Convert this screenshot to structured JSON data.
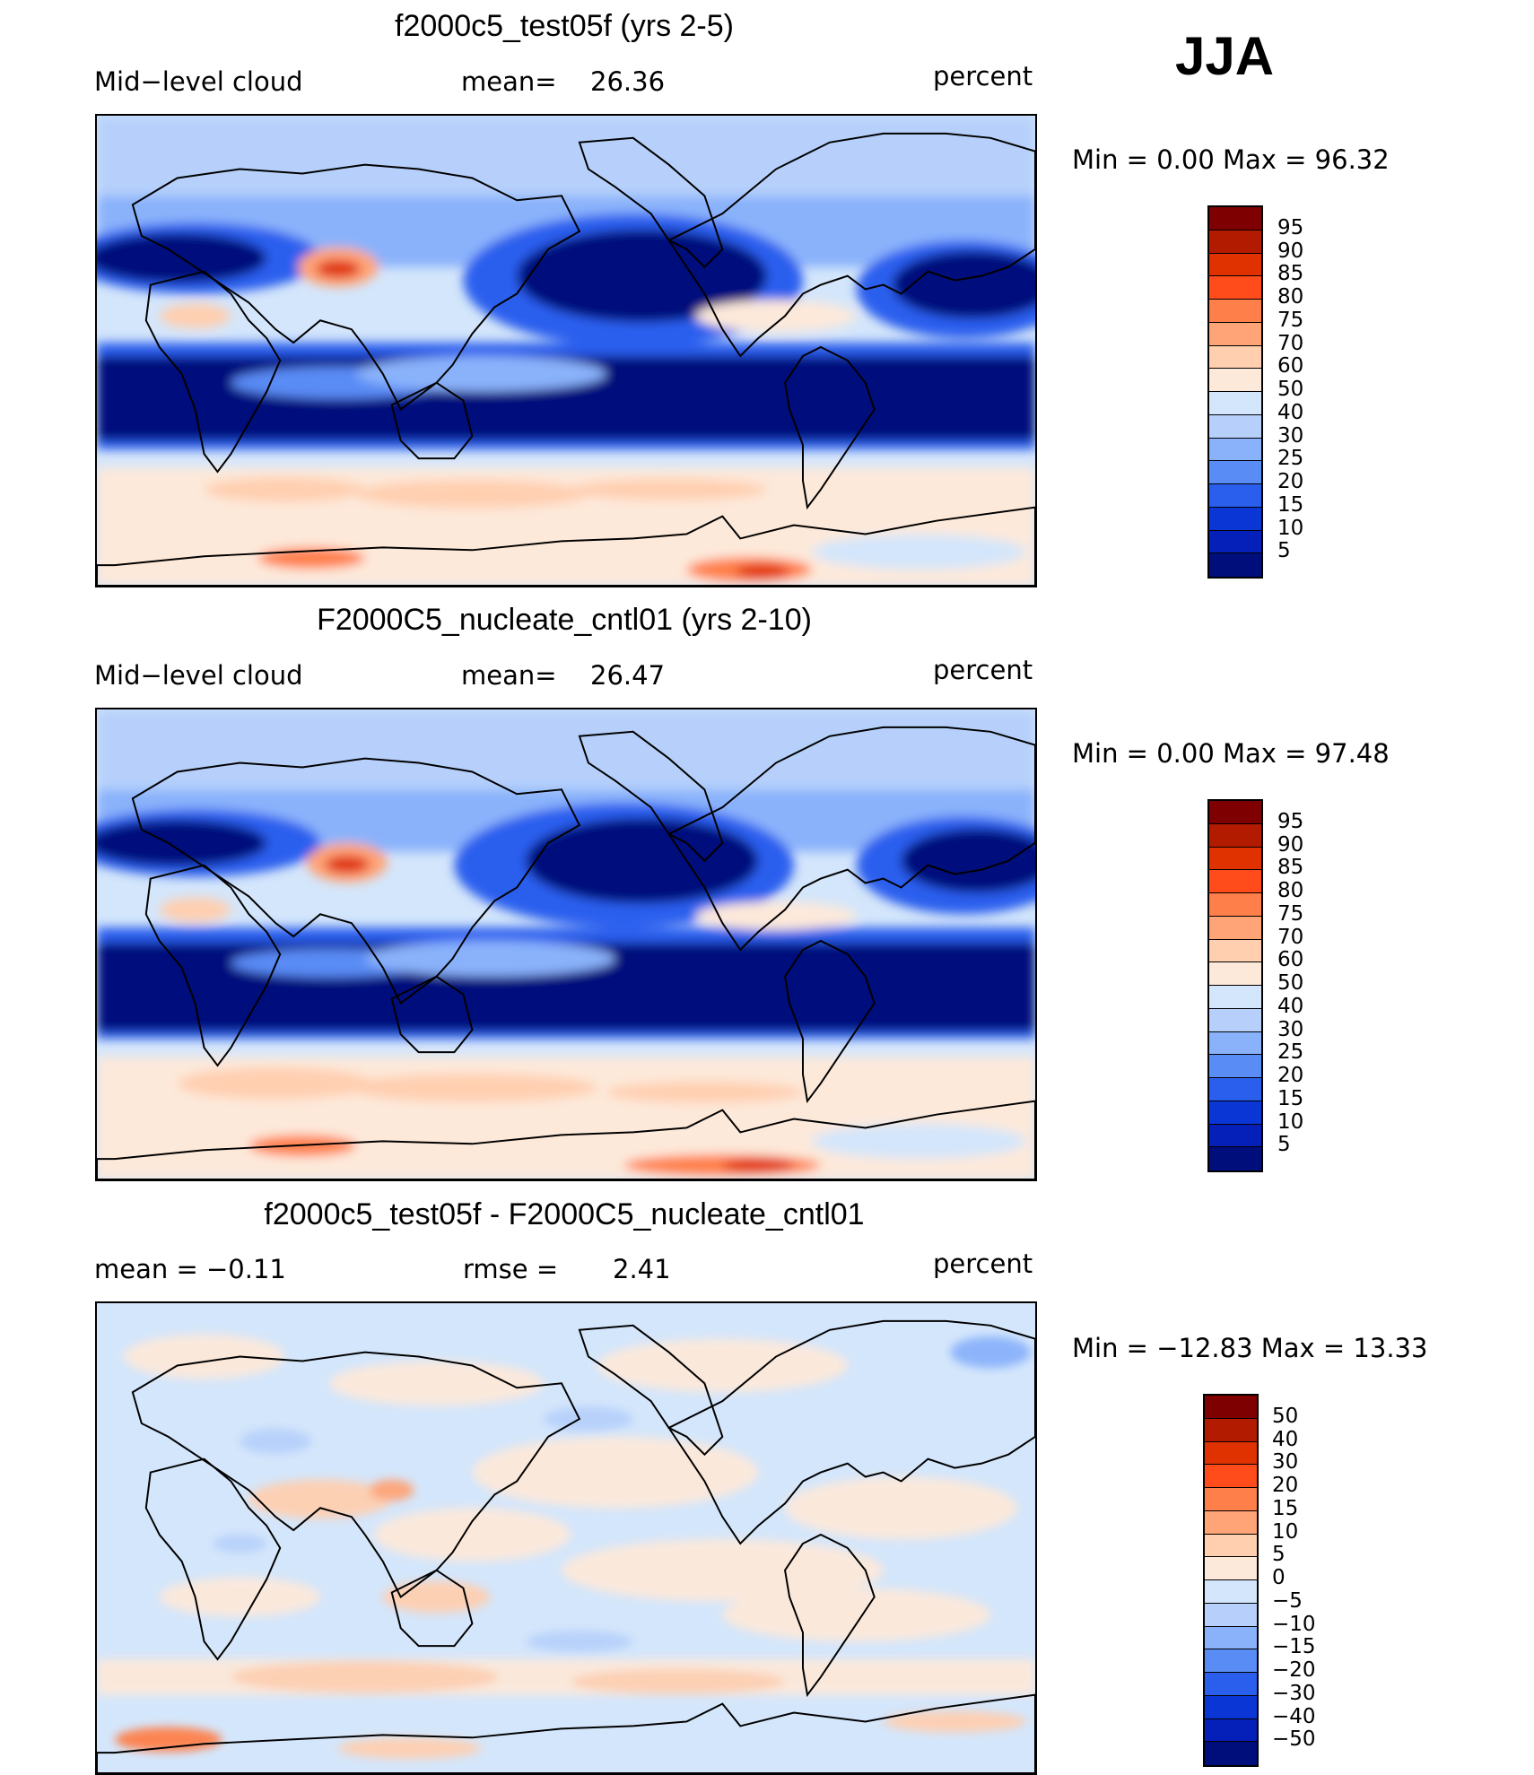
{
  "season": "JJA",
  "panels": [
    {
      "title": "f2000c5_test05f (yrs 2-5)",
      "left_label": "Mid−level cloud",
      "center_label": "mean=",
      "center_value": "26.36",
      "units": "percent",
      "minmax": "Min  =    0.00  Max  =   96.32",
      "colorbar": {
        "labels": [
          "95",
          "90",
          "85",
          "80",
          "75",
          "70",
          "60",
          "50",
          "40",
          "30",
          "25",
          "20",
          "15",
          "10",
          "5"
        ],
        "colors": [
          "#7f0000",
          "#b31b00",
          "#e03200",
          "#ff4c1a",
          "#ff7f4a",
          "#ffa477",
          "#ffcfb0",
          "#fde9da",
          "#d4e6fb",
          "#b6d0fb",
          "#8ab2fb",
          "#5a8cf6",
          "#2a5fee",
          "#0b36d6",
          "#0520b8",
          "#000e7c"
        ]
      }
    },
    {
      "title": "F2000C5_nucleate_cntl01 (yrs 2-10)",
      "left_label": "Mid−level cloud",
      "center_label": "mean=",
      "center_value": "26.47",
      "units": "percent",
      "minmax": "Min  =    0.00  Max  =   97.48",
      "colorbar": {
        "labels": [
          "95",
          "90",
          "85",
          "80",
          "75",
          "70",
          "60",
          "50",
          "40",
          "30",
          "25",
          "20",
          "15",
          "10",
          "5"
        ],
        "colors": [
          "#7f0000",
          "#b31b00",
          "#e03200",
          "#ff4c1a",
          "#ff7f4a",
          "#ffa477",
          "#ffcfb0",
          "#fde9da",
          "#d4e6fb",
          "#b6d0fb",
          "#8ab2fb",
          "#5a8cf6",
          "#2a5fee",
          "#0b36d6",
          "#0520b8",
          "#000e7c"
        ]
      }
    },
    {
      "title": "f2000c5_test05f - F2000C5_nucleate_cntl01",
      "left_label": "mean  =    −0.11",
      "center_label": "rmse  =",
      "center_value": "2.41",
      "units": "percent",
      "minmax": "Min  = −12.83  Max  =   13.33",
      "colorbar": {
        "labels": [
          "50",
          "40",
          "30",
          "20",
          "15",
          "10",
          "5",
          "0",
          "−5",
          "−10",
          "−15",
          "−20",
          "−30",
          "−40",
          "−50"
        ],
        "colors": [
          "#7f0000",
          "#b31b00",
          "#e03200",
          "#ff4c1a",
          "#ff7f4a",
          "#ffa477",
          "#ffcfb0",
          "#fde9da",
          "#d4e6fb",
          "#b6d0fb",
          "#8ab2fb",
          "#5a8cf6",
          "#2a5fee",
          "#0b36d6",
          "#0520b8",
          "#000e7c"
        ]
      }
    }
  ]
}
